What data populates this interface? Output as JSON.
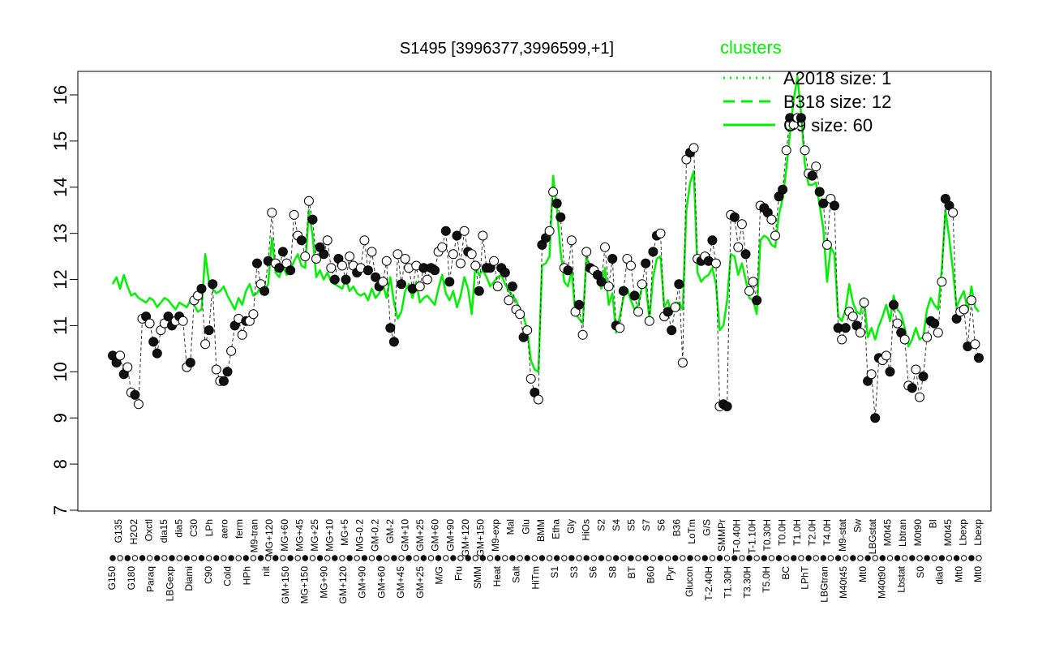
{
  "chart_data": {
    "type": "line",
    "title": "S1495 [3996377,3996599,+1]",
    "xlabel": "",
    "ylabel": "",
    "ylim": [
      7,
      16
    ],
    "yticks": [
      7,
      8,
      9,
      10,
      11,
      12,
      13,
      14,
      15,
      16
    ],
    "grid": false,
    "legend": {
      "title": "clusters",
      "placement": "top-right",
      "color": "#00ee00",
      "entries": [
        {
          "label": "A2018 size: 1",
          "style": "dotted"
        },
        {
          "label": "B318 size: 12",
          "style": "dashed"
        },
        {
          "label": "C9 size: 60",
          "style": "solid"
        }
      ]
    },
    "x_tick_labels_top": [
      "G135",
      "H2O2",
      "Oxctl",
      "dia15",
      "dia5",
      "C30",
      "LPh",
      "aero",
      "ferm",
      "M9-tran",
      "MG+120",
      "MG+60",
      "MG+45",
      "MG+25",
      "MG+10",
      "MG+5",
      "MG-0.2",
      "GM-0.2",
      "GM-2",
      "GM+10",
      "GM+25",
      "GM+60",
      "GM+90",
      "GM+120",
      "GM+150",
      "M9-exp",
      "Mal",
      "Glu",
      "BMM",
      "Etha",
      "Gly",
      "HiOs",
      "S2",
      "S4",
      "S5",
      "S7",
      "S6",
      "B36",
      "LoTm",
      "G/S",
      "SMMPr",
      "T-0.40H",
      "T-1.10H",
      "T0.30H",
      "T0.0H",
      "T1.0H",
      "T2.0H",
      "T4.0H",
      "M9-stat",
      "Sw",
      "LBGstat",
      "M0t45",
      "Lbtran",
      "M0t90",
      "BI",
      "M0t45",
      "Lbexp",
      "Lbexp"
    ],
    "x_tick_labels_bottom": [
      "G150",
      "G180",
      "Paraq",
      "LBGexp",
      "Diami",
      "C90",
      "Cold",
      "HPh",
      "nit",
      "GM+150",
      "MG+150",
      "MG+90",
      "GM+120",
      "GM+90",
      "GM+60",
      "GM+45",
      "GM+25",
      "M/G",
      "Fru",
      "SMM",
      "Heat",
      "Salt",
      "HiTm",
      "S1",
      "S3",
      "S6",
      "S8",
      "BT",
      "B60",
      "Pyr",
      "Glucon",
      "T-2.40H",
      "T1.30H",
      "T3.30H",
      "T5.0H",
      "BC",
      "LPhT",
      "LBGtran",
      "M40t45",
      "Mt0",
      "M40t90",
      "Lbstat",
      "S0",
      "dia0",
      "Mt0",
      "Mt0"
    ],
    "points": [
      10.35,
      10.2,
      10.35,
      9.95,
      10.1,
      9.55,
      9.5,
      9.3,
      11.15,
      11.2,
      11.05,
      10.65,
      10.4,
      10.9,
      11.05,
      11.2,
      11.0,
      11.1,
      11.2,
      11.1,
      10.1,
      10.2,
      11.55,
      11.65,
      11.8,
      10.6,
      10.9,
      11.9,
      10.05,
      9.8,
      9.8,
      10.0,
      10.45,
      11.0,
      11.15,
      10.8,
      11.1,
      11.1,
      11.25,
      12.35,
      11.9,
      11.75,
      12.4,
      13.45,
      12.35,
      12.25,
      12.6,
      12.35,
      12.2,
      13.4,
      12.95,
      12.85,
      12.5,
      13.7,
      13.3,
      12.45,
      12.7,
      12.55,
      12.85,
      12.25,
      12.0,
      12.45,
      12.3,
      12.0,
      12.5,
      12.3,
      12.15,
      12.25,
      12.85,
      12.2,
      12.6,
      12.05,
      11.85,
      11.95,
      12.4,
      10.95,
      10.65,
      12.55,
      11.9,
      12.45,
      12.25,
      11.8,
      12.3,
      11.85,
      12.25,
      12.0,
      12.25,
      12.2,
      12.6,
      12.7,
      13.05,
      11.95,
      12.55,
      12.95,
      12.35,
      13.05,
      12.6,
      12.55,
      12.3,
      11.75,
      12.95,
      12.25,
      12.25,
      12.4,
      11.85,
      12.25,
      12.15,
      11.55,
      11.85,
      11.35,
      11.25,
      10.75,
      10.9,
      9.85,
      9.55,
      9.4,
      12.75,
      12.9,
      13.05,
      13.9,
      13.65,
      13.35,
      12.25,
      12.2,
      12.85,
      11.3,
      11.45,
      10.8,
      12.6,
      12.25,
      12.2,
      12.1,
      11.95,
      12.7,
      11.85,
      12.45,
      11.0,
      10.95,
      11.75,
      12.45,
      12.3,
      11.65,
      11.3,
      11.9,
      12.35,
      11.1,
      12.6,
      12.95,
      13.0,
      11.2,
      11.3,
      10.9,
      11.4,
      11.9,
      10.2,
      14.6,
      14.75,
      14.85,
      12.45,
      12.4,
      12.5,
      12.4,
      12.85,
      12.35,
      9.25,
      9.3,
      9.25,
      13.4,
      13.35,
      12.7,
      13.2,
      12.55,
      11.75,
      11.95,
      11.55,
      13.6,
      13.55,
      13.45,
      13.3,
      12.95,
      13.8,
      13.95,
      14.8,
      15.5,
      15.35,
      15.5,
      15.5,
      14.8,
      14.3,
      14.25,
      14.45,
      13.9,
      13.65,
      12.75,
      13.75,
      13.6,
      10.95,
      10.7,
      10.95,
      11.3,
      11.2,
      11.0,
      10.85,
      11.5,
      9.8,
      9.95,
      9.0,
      10.3,
      10.25,
      10.35,
      10.0,
      11.45,
      11.05,
      10.85,
      10.7,
      9.7,
      9.65,
      10.05,
      9.45,
      9.9,
      10.75,
      11.1,
      11.05,
      10.85,
      11.95,
      13.75,
      13.6,
      13.45,
      11.15,
      11.3,
      11.35,
      10.55,
      11.55,
      10.6,
      10.3
    ],
    "series": [
      {
        "name": "C9 size: 60",
        "style": "solid",
        "values": [
          11.9,
          12.05,
          11.8,
          12.1,
          11.85,
          11.65,
          11.7,
          11.6,
          11.55,
          11.5,
          11.6,
          11.55,
          11.4,
          11.5,
          11.6,
          11.55,
          11.45,
          11.35,
          11.5,
          11.45,
          11.4,
          11.55,
          11.45,
          11.3,
          11.35,
          12.55,
          11.95,
          11.8,
          11.7,
          11.75,
          11.85,
          11.65,
          11.5,
          11.35,
          11.6,
          11.45,
          11.75,
          11.9,
          11.65,
          11.7,
          11.85,
          11.75,
          11.9,
          12.9,
          12.15,
          12.05,
          12.3,
          12.1,
          12.2,
          12.4,
          12.55,
          12.3,
          12.25,
          13.5,
          12.95,
          12.05,
          12.2,
          12.0,
          12.15,
          11.95,
          11.9,
          11.85,
          11.8,
          12.0,
          11.75,
          11.85,
          11.7,
          11.65,
          11.7,
          11.55,
          11.8,
          11.6,
          11.7,
          11.9,
          11.6,
          12.05,
          11.5,
          11.15,
          11.3,
          11.75,
          11.9,
          11.6,
          11.95,
          11.5,
          11.6,
          11.65,
          11.55,
          11.45,
          11.8,
          12.1,
          11.7,
          11.55,
          11.75,
          11.4,
          11.65,
          12.05,
          11.8,
          11.25,
          12.3,
          12.1,
          12.2,
          12.05,
          11.85,
          11.95,
          12.05,
          12.1,
          11.9,
          11.75,
          11.65,
          11.55,
          11.35,
          11.2,
          10.9,
          10.25,
          10.05,
          10.0,
          12.3,
          12.35,
          12.5,
          14.25,
          13.55,
          12.6,
          11.95,
          11.85,
          12.2,
          11.25,
          11.15,
          11.05,
          12.5,
          12.2,
          12.15,
          12.05,
          11.8,
          12.25,
          11.45,
          11.7,
          10.85,
          11.2,
          11.6,
          11.8,
          11.55,
          11.35,
          11.45,
          11.85,
          11.9,
          11.15,
          12.05,
          12.45,
          12.5,
          11.4,
          11.55,
          11.25,
          11.5,
          11.5,
          11.35,
          13.5,
          14.1,
          14.35,
          12.15,
          11.95,
          12.05,
          12.1,
          12.25,
          11.9,
          10.9,
          11.0,
          11.55,
          12.55,
          12.5,
          12.1,
          12.35,
          12.0,
          11.6,
          11.55,
          11.25,
          12.85,
          12.95,
          12.9,
          12.75,
          12.7,
          13.4,
          13.75,
          14.4,
          15.2,
          15.9,
          16.4,
          15.6,
          14.5,
          14.05,
          14.05,
          14.1,
          13.6,
          13.1,
          11.95,
          12.7,
          12.55,
          11.2,
          11.1,
          11.35,
          11.9,
          11.5,
          11.3,
          11.25,
          11.6,
          10.75,
          10.95,
          10.7,
          11.0,
          11.2,
          11.45,
          11.1,
          11.65,
          11.35,
          11.25,
          10.95,
          10.55,
          10.7,
          10.95,
          10.7,
          10.75,
          11.35,
          11.6,
          11.45,
          11.35,
          12.25,
          13.5,
          12.9,
          12.2,
          11.4,
          11.6,
          11.75,
          11.3,
          11.85,
          11.4,
          11.3
        ]
      }
    ]
  }
}
